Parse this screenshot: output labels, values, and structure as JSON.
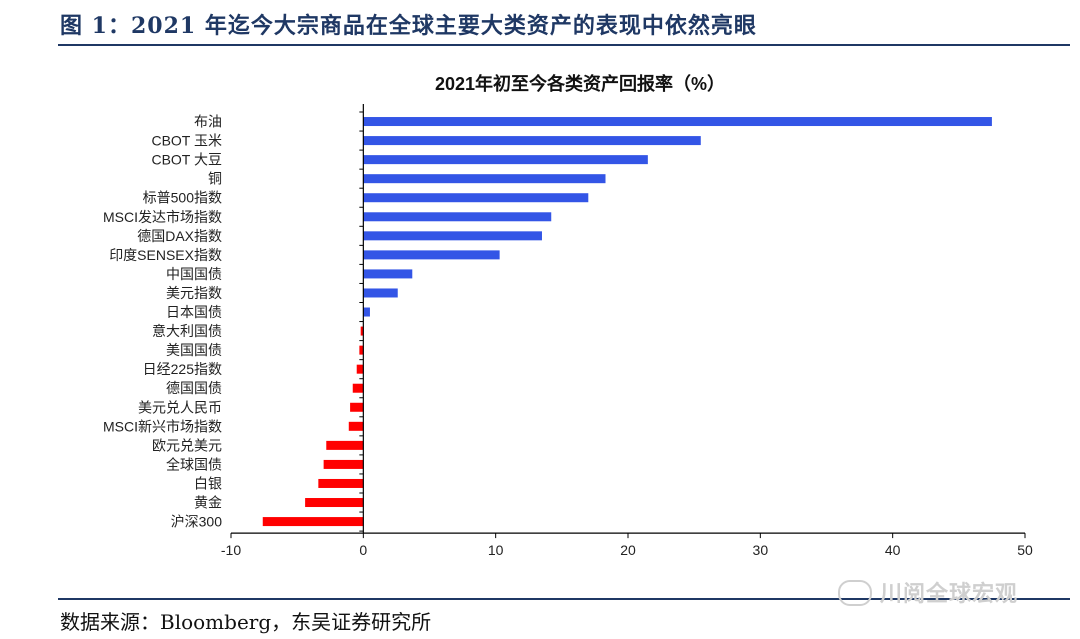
{
  "figure": {
    "title": "图 1：2021 年迄今大宗商品在全球主要大类资产的表现中依然亮眼",
    "source": "数据来源：Bloomberg，东吴证券研究所",
    "watermark": "川阅全球宏观"
  },
  "colors": {
    "positive": "#3355e6",
    "negative": "#ff0000",
    "rule": "#1f3864"
  },
  "chart_data": {
    "type": "bar",
    "orientation": "horizontal",
    "title": "2021年初至今各类资产回报率（%）",
    "xlabel": "",
    "ylabel": "",
    "xlim": [
      -10,
      50
    ],
    "xticks": [
      -10,
      0,
      10,
      20,
      30,
      40,
      50
    ],
    "grid": false,
    "categories": [
      "布油",
      "CBOT 玉米",
      "CBOT 大豆",
      "铜",
      "标普500指数",
      "MSCI发达市场指数",
      "德国DAX指数",
      "印度SENSEX指数",
      "中国国债",
      "美元指数",
      "日本国债",
      "意大利国债",
      "美国国债",
      "日经225指数",
      "德国国债",
      "美元兑人民币",
      "MSCI新兴市场指数",
      "欧元兑美元",
      "全球国债",
      "白银",
      "黄金",
      "沪深300"
    ],
    "values": [
      47.5,
      25.5,
      21.5,
      18.3,
      17.0,
      14.2,
      13.5,
      10.3,
      3.7,
      2.6,
      0.5,
      -0.2,
      -0.3,
      -0.5,
      -0.8,
      -1.0,
      -1.1,
      -2.8,
      -3.0,
      -3.4,
      -4.4,
      -7.6
    ]
  }
}
